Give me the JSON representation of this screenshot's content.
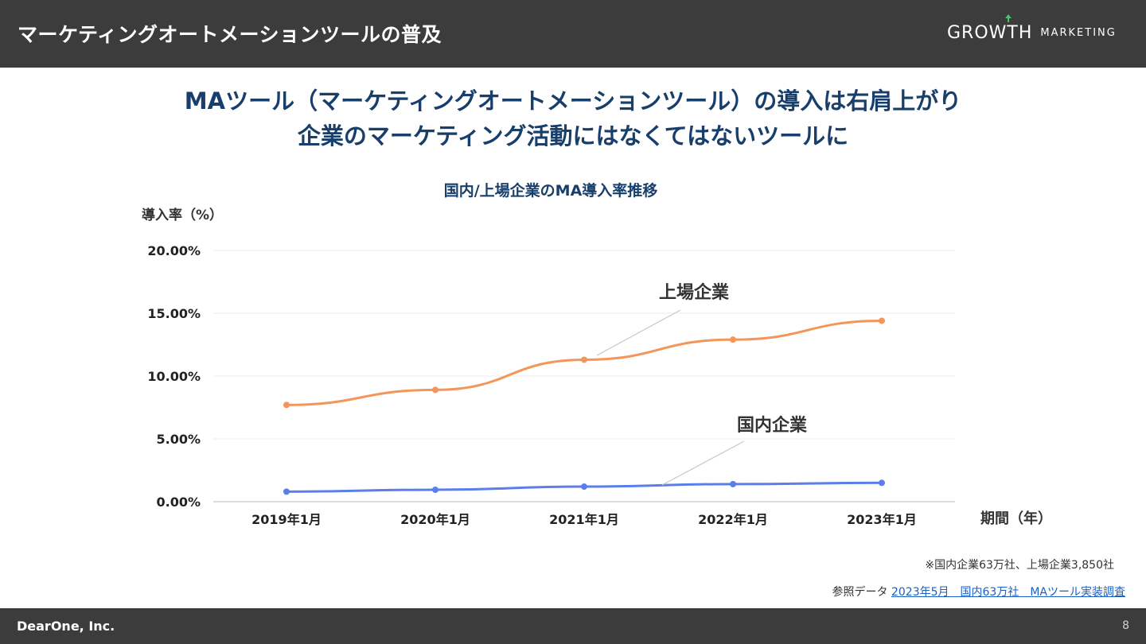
{
  "header": {
    "title": "マーケティングオートメーションツールの普及",
    "logo_main": "GROWTH",
    "logo_sub": "MARKETING"
  },
  "headline": {
    "line1": "MAツール（マーケティングオートメーションツール）の導入は右肩上がり",
    "line2": "企業のマーケティング活動にはなくてはないツールに"
  },
  "chart_data": {
    "type": "line",
    "title": "国内/上場企業のMA導入率推移",
    "ylabel": "導入率（%）",
    "xlabel": "期間（年）",
    "categories": [
      "2019年1月",
      "2020年1月",
      "2021年1月",
      "2022年1月",
      "2023年1月"
    ],
    "ylim": [
      0,
      20
    ],
    "yticks": [
      "20.00%",
      "15.00%",
      "10.00%",
      "5.00%",
      "0.00%"
    ],
    "ytick_values": [
      20,
      15,
      10,
      5,
      0
    ],
    "grid": true,
    "series": [
      {
        "name": "上場企業",
        "values": [
          7.7,
          8.9,
          11.3,
          12.9,
          14.4
        ],
        "color": "#f4955a"
      },
      {
        "name": "国内企業",
        "values": [
          0.8,
          0.95,
          1.2,
          1.4,
          1.5
        ],
        "color": "#5b7ee8"
      }
    ]
  },
  "footnote": "※国内企業63万社、上場企業3,850社",
  "reference": {
    "label": "参照データ",
    "link_text": "2023年5月　国内63万社　MAツール実装調査"
  },
  "footer": {
    "company": "DearOne, Inc.",
    "page": "8"
  },
  "colors": {
    "header_bg": "#3c3c3c",
    "headline": "#183f6b",
    "link": "#1a5fc4"
  }
}
